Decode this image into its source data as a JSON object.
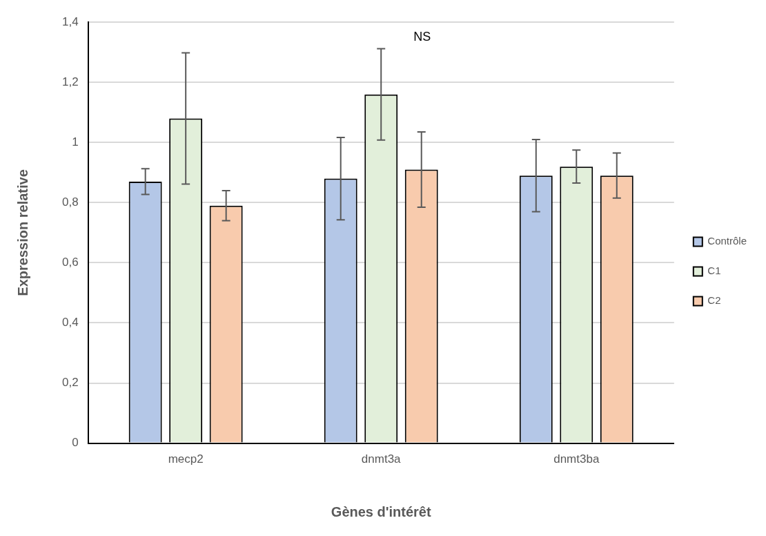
{
  "chart_data": {
    "type": "bar",
    "xlabel": "Gènes d'intérêt",
    "ylabel": "Expression relative",
    "categories": [
      "mecp2",
      "dnmt3a",
      "dnmt3ba"
    ],
    "series": [
      {
        "name": "Contrôle",
        "color": "#b4c7e7",
        "values": [
          0.87,
          0.88,
          0.89
        ],
        "errors": [
          0.043,
          0.137,
          0.12
        ]
      },
      {
        "name": "C1",
        "color": "#e2efda",
        "values": [
          1.08,
          1.16,
          0.92
        ],
        "errors": [
          0.218,
          0.152,
          0.055
        ]
      },
      {
        "name": "C2",
        "color": "#f8cbad",
        "values": [
          0.79,
          0.91,
          0.89
        ],
        "errors": [
          0.05,
          0.125,
          0.075
        ]
      }
    ],
    "ylim": [
      0,
      1.4
    ],
    "yticks": [
      0,
      {
        "value": 0.2,
        "label": "0,2"
      },
      {
        "value": 0.4,
        "label": "0,4"
      },
      {
        "value": 0.6,
        "label": "0,6"
      },
      {
        "value": 0.8,
        "label": "0,8"
      },
      1,
      {
        "value": 1.2,
        "label": "1,2"
      },
      {
        "value": 1.4,
        "label": "1,4"
      }
    ],
    "grid": "y",
    "legend": "right",
    "annotations": [
      "NS"
    ]
  }
}
